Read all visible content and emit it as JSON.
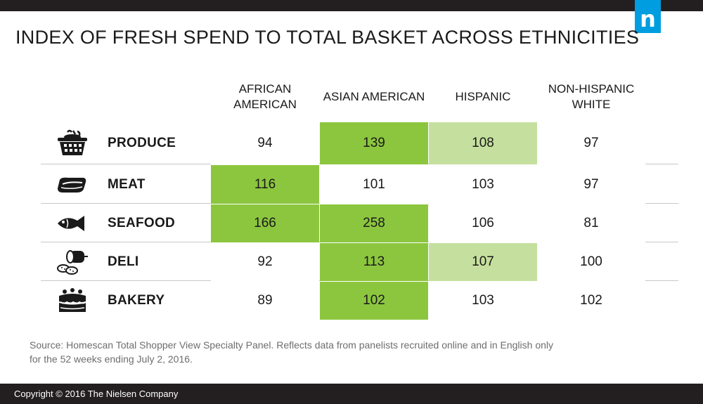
{
  "brand": {
    "logo_text": "n",
    "color": "#009de0"
  },
  "title": "INDEX OF FRESH SPEND TO TOTAL BASKET ACROSS ETHNICITIES",
  "colors": {
    "strong": "#8cc63f",
    "light": "#c5e09e",
    "none": "#ffffff"
  },
  "chart_data": {
    "type": "table",
    "columns": [
      "AFRICAN AMERICAN",
      "ASIAN AMERICAN",
      "HISPANIC",
      "NON-HISPANIC WHITE"
    ],
    "rows": [
      {
        "label": "PRODUCE",
        "icon": "basket-icon",
        "values": [
          94,
          139,
          108,
          97
        ],
        "highlight": [
          "none",
          "strong",
          "light",
          "none"
        ]
      },
      {
        "label": "MEAT",
        "icon": "steak-icon",
        "values": [
          116,
          101,
          103,
          97
        ],
        "highlight": [
          "strong",
          "none",
          "none",
          "none"
        ]
      },
      {
        "label": "SEAFOOD",
        "icon": "fish-icon",
        "values": [
          166,
          258,
          106,
          81
        ],
        "highlight": [
          "strong",
          "strong",
          "none",
          "none"
        ]
      },
      {
        "label": "DELI",
        "icon": "deli-meat-icon",
        "values": [
          92,
          113,
          107,
          100
        ],
        "highlight": [
          "none",
          "strong",
          "light",
          "none"
        ]
      },
      {
        "label": "BAKERY",
        "icon": "cake-icon",
        "values": [
          89,
          102,
          103,
          102
        ],
        "highlight": [
          "none",
          "strong",
          "none",
          "none"
        ]
      }
    ]
  },
  "source": "Source: Homescan Total Shopper View Specialty Panel. Reflects data from panelists recruited online and in English only for the 52 weeks ending July 2, 2016.",
  "footer": "Copyright © 2016 The Nielsen Company"
}
